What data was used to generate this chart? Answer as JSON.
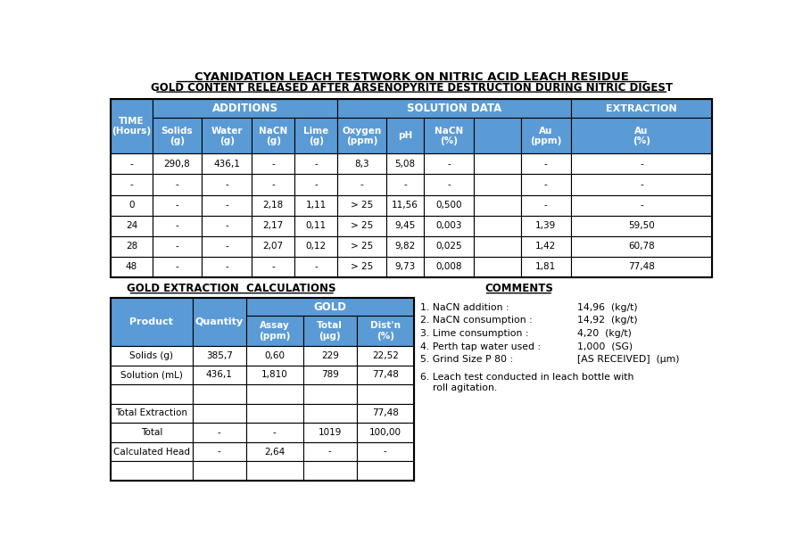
{
  "title1": "CYANIDATION LEACH TESTWORK ON NITRIC ACID LEACH RESIDUE",
  "title2": "GOLD CONTENT RELEASED AFTER ARSENOPYRITE DESTRUCTION DURING NITRIC DIGEST",
  "header_bg": "#5B9BD5",
  "header_text": "#FFFFFF",
  "border_color": "#000000",
  "top_table_rows": [
    [
      "-",
      "290,8",
      "436,1",
      "-",
      "-",
      "8,3",
      "5,08",
      "-",
      "",
      "-",
      "-"
    ],
    [
      "-",
      "-",
      "-",
      "-",
      "-",
      "-",
      "-",
      "-",
      "",
      "-",
      "-"
    ],
    [
      "0",
      "-",
      "-",
      "2,18",
      "1,11",
      "> 25",
      "11,56",
      "0,500",
      "",
      "-",
      "-"
    ],
    [
      "24",
      "-",
      "-",
      "2,17",
      "0,11",
      "> 25",
      "9,45",
      "0,003",
      "",
      "1,39",
      "59,50"
    ],
    [
      "28",
      "-",
      "-",
      "2,07",
      "0,12",
      "> 25",
      "9,82",
      "0,025",
      "",
      "1,42",
      "60,78"
    ],
    [
      "48",
      "-",
      "-",
      "-",
      "-",
      "> 25",
      "9,73",
      "0,008",
      "",
      "1,81",
      "77,48"
    ]
  ],
  "section2_title1": "GOLD EXTRACTION  CALCULATIONS",
  "section2_title2": "COMMENTS",
  "bottom_table_rows": [
    [
      "Solids (g)",
      "385,7",
      "0,60",
      "229",
      "22,52"
    ],
    [
      "Solution (mL)",
      "436,1",
      "1,810",
      "789",
      "77,48"
    ],
    [
      "",
      "",
      "",
      "",
      ""
    ],
    [
      "Total Extraction",
      "",
      "",
      "",
      "77,48"
    ],
    [
      "Total",
      "-",
      "-",
      "1019",
      "100,00"
    ],
    [
      "Calculated Head",
      "-",
      "2,64",
      "-",
      "-"
    ],
    [
      "",
      "",
      "",
      "",
      ""
    ]
  ],
  "comments": [
    [
      "1. NaCN addition :",
      "14,96  (kg/t)"
    ],
    [
      "2. NaCN consumption :",
      "14,92  (kg/t)"
    ],
    [
      "3. Lime consumption :",
      "4,20  (kg/t)"
    ],
    [
      "4. Perth tap water used :",
      "1,000  (SG)"
    ],
    [
      "5. Grind Size P 80 :",
      "[AS RECEIVED]  (μm)"
    ],
    [
      "6. Leach test conducted in leach bottle with\n    roll agitation.",
      ""
    ]
  ]
}
